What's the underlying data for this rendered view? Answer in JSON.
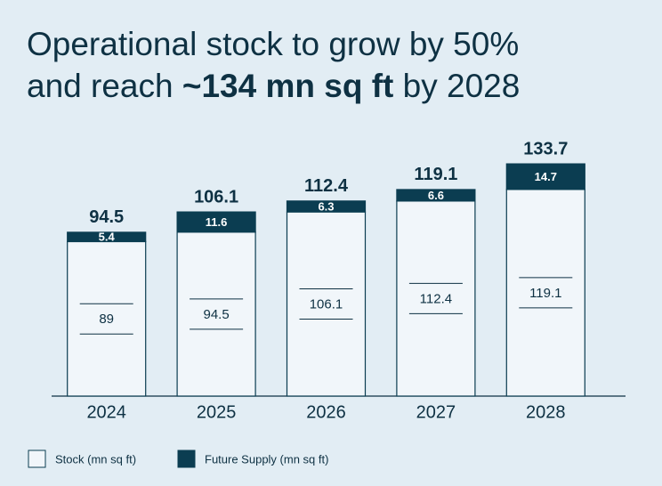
{
  "chart_data": {
    "type": "stacked_bar",
    "title": {
      "line1": "Operational stock to grow by 50%",
      "line2_start": "and reach",
      "line2_bold": "~134 mn sq ft",
      "line2_end": "by 2028"
    },
    "categories": [
      "2024",
      "2025",
      "2026",
      "2027",
      "2028"
    ],
    "series": [
      {
        "name": "Stock (mn sq ft)",
        "color": "#f1f6fa",
        "values": [
          89,
          94.5,
          106.1,
          112.4,
          119.1
        ]
      },
      {
        "name": "Future Supply (mn sq ft)",
        "color": "#0b3d51",
        "values": [
          5.4,
          11.6,
          6.3,
          6.6,
          14.7
        ]
      }
    ],
    "totals": [
      94.5,
      106.1,
      112.4,
      119.1,
      133.7
    ],
    "ylim": [
      0,
      140
    ]
  }
}
